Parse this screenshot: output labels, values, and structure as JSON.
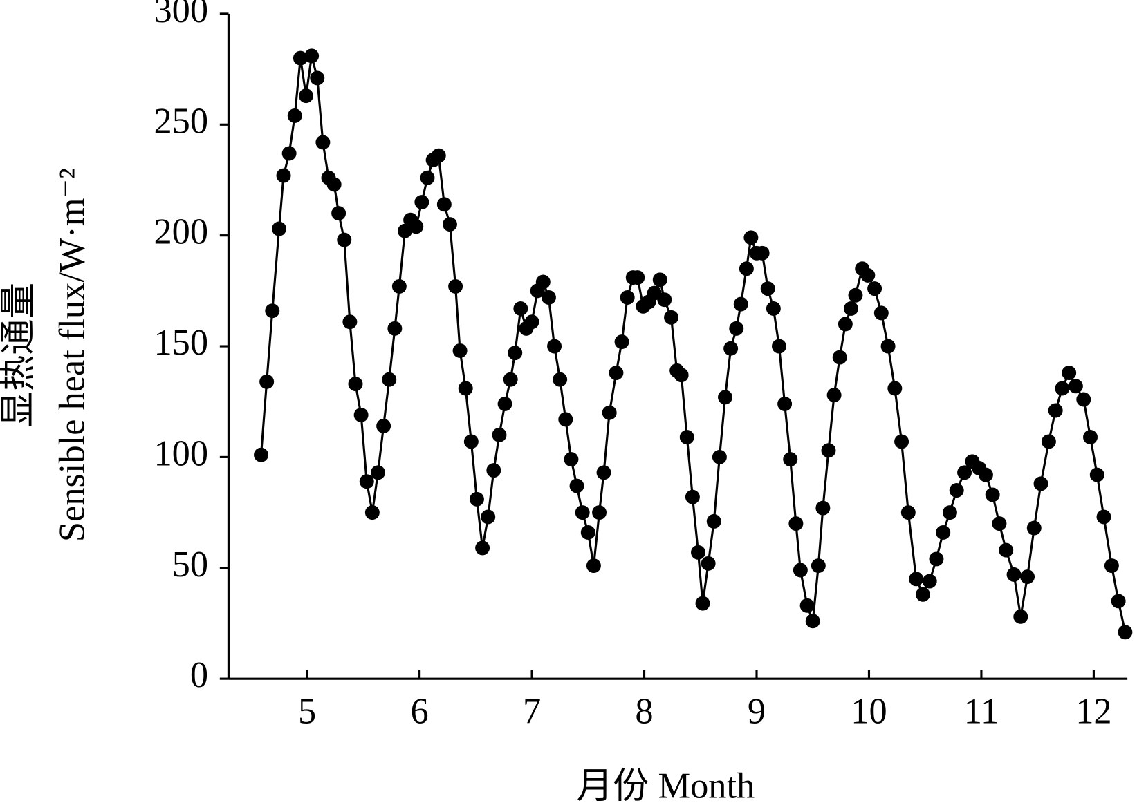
{
  "chart_data": {
    "type": "line",
    "y_label": [
      "显热通量",
      "Sensible heat flux/W·m⁻²"
    ],
    "x_label": "月份 Month",
    "color": "#000000",
    "marker": "circle",
    "x": [
      4.59,
      4.64,
      4.69,
      4.75,
      4.79,
      4.84,
      4.89,
      4.94,
      4.99,
      5.04,
      5.09,
      5.14,
      5.19,
      5.24,
      5.28,
      5.33,
      5.38,
      5.43,
      5.48,
      5.53,
      5.58,
      5.63,
      5.68,
      5.73,
      5.78,
      5.82,
      5.87,
      5.92,
      5.97,
      6.02,
      6.07,
      6.12,
      6.17,
      6.22,
      6.27,
      6.32,
      6.36,
      6.41,
      6.46,
      6.51,
      6.56,
      6.61,
      6.66,
      6.71,
      6.76,
      6.81,
      6.85,
      6.9,
      6.95,
      7.0,
      7.05,
      7.1,
      7.15,
      7.2,
      7.25,
      7.3,
      7.35,
      7.4,
      7.45,
      7.5,
      7.55,
      7.6,
      7.64,
      7.69,
      7.75,
      7.8,
      7.85,
      7.9,
      7.94,
      7.99,
      8.04,
      8.09,
      8.14,
      8.18,
      8.24,
      8.29,
      8.33,
      8.38,
      8.43,
      8.48,
      8.52,
      8.57,
      8.62,
      8.67,
      8.72,
      8.77,
      8.82,
      8.86,
      8.91,
      8.95,
      9.0,
      9.05,
      9.1,
      9.15,
      9.2,
      9.25,
      9.3,
      9.35,
      9.39,
      9.45,
      9.5,
      9.55,
      9.59,
      9.64,
      9.69,
      9.74,
      9.79,
      9.84,
      9.88,
      9.94,
      9.99,
      10.05,
      10.11,
      10.17,
      10.23,
      10.29,
      10.35,
      10.42,
      10.48,
      10.54,
      10.6,
      10.66,
      10.72,
      10.78,
      10.85,
      10.92,
      10.98,
      11.04,
      11.1,
      11.16,
      11.22,
      11.29,
      11.35,
      11.41,
      11.47,
      11.53,
      11.6,
      11.66,
      11.72,
      11.78,
      11.84,
      11.91,
      11.97,
      12.03,
      12.09,
      12.16,
      12.22,
      12.28
    ],
    "values": [
      101,
      134,
      166,
      203,
      227,
      237,
      254,
      280,
      263,
      281,
      271,
      242,
      226,
      223,
      210,
      198,
      161,
      133,
      119,
      89,
      75,
      93,
      114,
      135,
      158,
      177,
      202,
      207,
      204,
      215,
      226,
      234,
      236,
      214,
      205,
      177,
      148,
      131,
      107,
      81,
      59,
      73,
      94,
      110,
      124,
      135,
      147,
      167,
      158,
      161,
      175,
      179,
      172,
      150,
      135,
      117,
      99,
      87,
      75,
      66,
      51,
      75,
      93,
      120,
      138,
      152,
      172,
      181,
      181,
      168,
      170,
      174,
      180,
      171,
      163,
      139,
      137,
      109,
      82,
      57,
      34,
      52,
      71,
      100,
      127,
      149,
      158,
      169,
      185,
      199,
      192,
      192,
      176,
      167,
      150,
      124,
      99,
      70,
      49,
      33,
      26,
      51,
      77,
      103,
      128,
      145,
      160,
      167,
      173,
      185,
      182,
      176,
      165,
      150,
      131,
      107,
      75,
      45,
      38,
      44,
      54,
      66,
      75,
      85,
      93,
      98,
      95,
      92,
      83,
      70,
      58,
      47,
      28,
      46,
      68,
      88,
      107,
      121,
      131,
      138,
      132,
      126,
      109,
      92,
      73,
      51,
      35,
      21
    ],
    "xlim": [
      4.3,
      12.3
    ],
    "xticks": [
      5,
      6,
      7,
      8,
      9,
      10,
      11,
      12
    ],
    "ylim": [
      0,
      300
    ],
    "yticks": [
      0,
      50,
      100,
      150,
      200,
      250,
      300
    ]
  }
}
